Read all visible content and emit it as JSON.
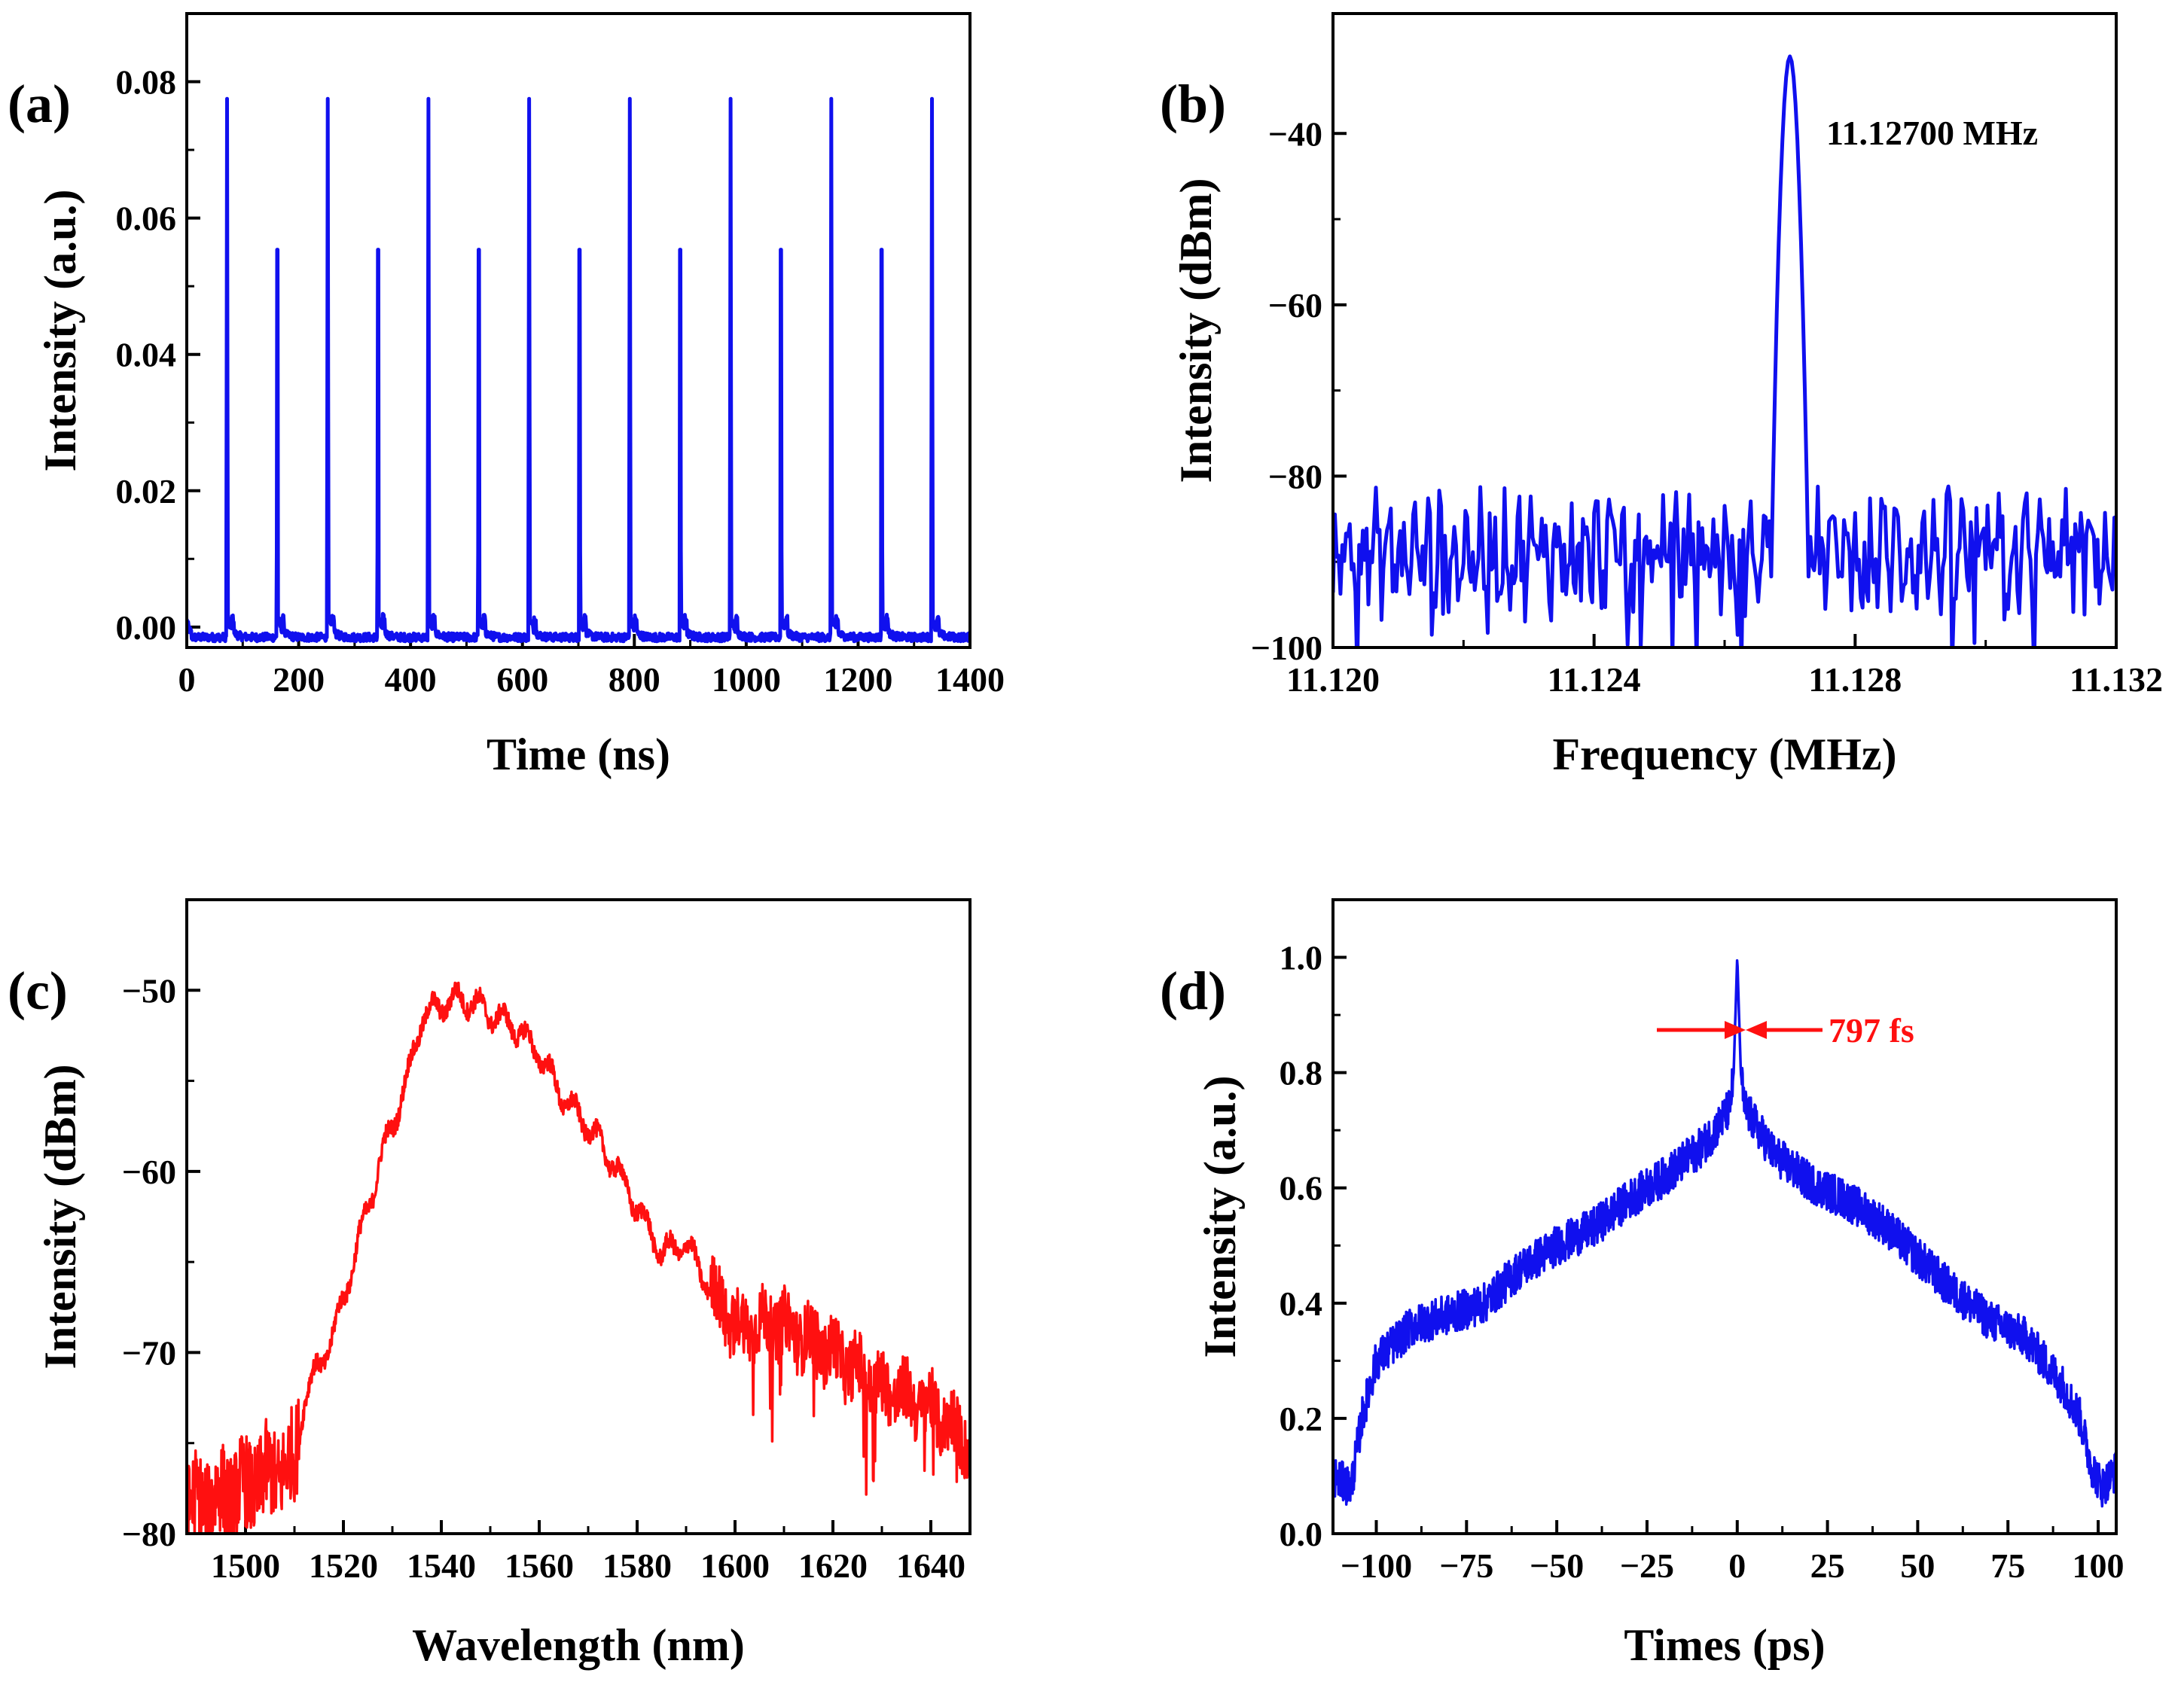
{
  "colors": {
    "blue": "#1010ee",
    "red": "#ff1010",
    "axis": "#000000"
  },
  "chart_data": [
    {
      "panel": "(a)",
      "type": "line",
      "xlabel": "Time (ns)",
      "ylabel": "Intensity (a.u.)",
      "xlim": [
        0,
        1400
      ],
      "ylim": [
        -0.003,
        0.09
      ],
      "xticks": [
        0,
        200,
        400,
        600,
        800,
        1000,
        1200,
        1400
      ],
      "xtick_labels": [
        "0",
        "200",
        "400",
        "600",
        "800",
        "1000",
        "1200",
        "1400"
      ],
      "yticks": [
        0.0,
        0.02,
        0.04,
        0.06,
        0.08
      ],
      "ytick_labels": [
        "0.00",
        "0.02",
        "0.04",
        "0.06",
        "0.08"
      ],
      "series": [
        {
          "name": "pulse train",
          "color": "#1010ee",
          "baseline": -0.0015,
          "pulse_peak": 0.0775,
          "pulse_times": [
            72,
            162,
            252,
            342,
            432,
            522,
            612,
            702,
            792,
            882,
            972,
            1062,
            1152,
            1242,
            1332
          ]
        }
      ]
    },
    {
      "panel": "(b)",
      "type": "line",
      "xlabel": "Frequency (MHz)",
      "ylabel": "Intensity (dBm)",
      "xlim": [
        11.12,
        11.132
      ],
      "ylim": [
        -100,
        -26
      ],
      "xticks": [
        11.12,
        11.124,
        11.128,
        11.132
      ],
      "xtick_labels": [
        "11.120",
        "11.124",
        "11.128",
        "11.132"
      ],
      "yticks": [
        -100,
        -80,
        -60,
        -40
      ],
      "ytick_labels": [
        "−100",
        "−80",
        "−60",
        "−40"
      ],
      "annotation": "11.12700 MHz",
      "series": [
        {
          "name": "RF spectrum",
          "color": "#1010ee",
          "peak_freq": 11.127,
          "peak_dbm": -31,
          "noise_floor_dbm": -89
        }
      ]
    },
    {
      "panel": "(c)",
      "type": "line",
      "xlabel": "Wavelength (nm)",
      "ylabel": "Intensity (dBm)",
      "xlim": [
        1488,
        1648
      ],
      "ylim": [
        -80,
        -45
      ],
      "xticks": [
        1500,
        1520,
        1540,
        1560,
        1580,
        1600,
        1620,
        1640
      ],
      "xtick_labels": [
        "1500",
        "1520",
        "1540",
        "1560",
        "1580",
        "1600",
        "1620",
        "1640"
      ],
      "yticks": [
        -80,
        -70,
        -60,
        -50
      ],
      "ytick_labels": [
        "−80",
        "−70",
        "−60",
        "−50"
      ],
      "series": [
        {
          "name": "optical spectrum",
          "color": "#ff1010",
          "x": [
            1488,
            1500,
            1510,
            1512,
            1518,
            1522,
            1528,
            1533,
            1536,
            1540,
            1543,
            1546,
            1550,
            1555,
            1560,
            1565,
            1570,
            1575,
            1580,
            1585,
            1590,
            1595,
            1600,
            1610,
            1620,
            1630,
            1640,
            1648
          ],
          "y": [
            -78.5,
            -77.5,
            -76,
            -72.5,
            -69,
            -65,
            -59,
            -55,
            -51.5,
            -50.8,
            -50.5,
            -50.6,
            -51.3,
            -52,
            -53.5,
            -56,
            -57.5,
            -59.5,
            -62,
            -64.5,
            -64,
            -66.5,
            -68.5,
            -68.5,
            -70,
            -72,
            -73,
            -75
          ]
        }
      ]
    },
    {
      "panel": "(d)",
      "type": "line",
      "xlabel": "Times (ps)",
      "ylabel": "Intensity (a.u.)",
      "xlim": [
        -112,
        105
      ],
      "ylim": [
        0,
        1.1
      ],
      "xticks": [
        -100,
        -75,
        -50,
        -25,
        0,
        25,
        50,
        75,
        100
      ],
      "xtick_labels": [
        "−100",
        "−75",
        "−50",
        "−25",
        "0",
        "25",
        "50",
        "75",
        "100"
      ],
      "yticks": [
        0.0,
        0.2,
        0.4,
        0.6,
        0.8,
        1.0
      ],
      "ytick_labels": [
        "0.0",
        "0.2",
        "0.4",
        "0.6",
        "0.8",
        "1.0"
      ],
      "annotation": "797 fs",
      "series": [
        {
          "name": "autocorrelation",
          "color": "#1010ee",
          "x": [
            -112,
            -107,
            -104,
            -100,
            -90,
            -80,
            -70,
            -60,
            -50,
            -40,
            -30,
            -20,
            -10,
            -5,
            -2,
            -1,
            0,
            1,
            2,
            5,
            10,
            20,
            30,
            40,
            50,
            60,
            70,
            80,
            90,
            95,
            98,
            101,
            105
          ],
          "y": [
            0.1,
            0.08,
            0.2,
            0.3,
            0.36,
            0.38,
            0.4,
            0.46,
            0.5,
            0.53,
            0.58,
            0.62,
            0.67,
            0.71,
            0.74,
            0.8,
            1.0,
            0.8,
            0.74,
            0.71,
            0.66,
            0.61,
            0.58,
            0.54,
            0.48,
            0.42,
            0.37,
            0.34,
            0.26,
            0.2,
            0.12,
            0.08,
            0.11
          ]
        }
      ]
    }
  ]
}
